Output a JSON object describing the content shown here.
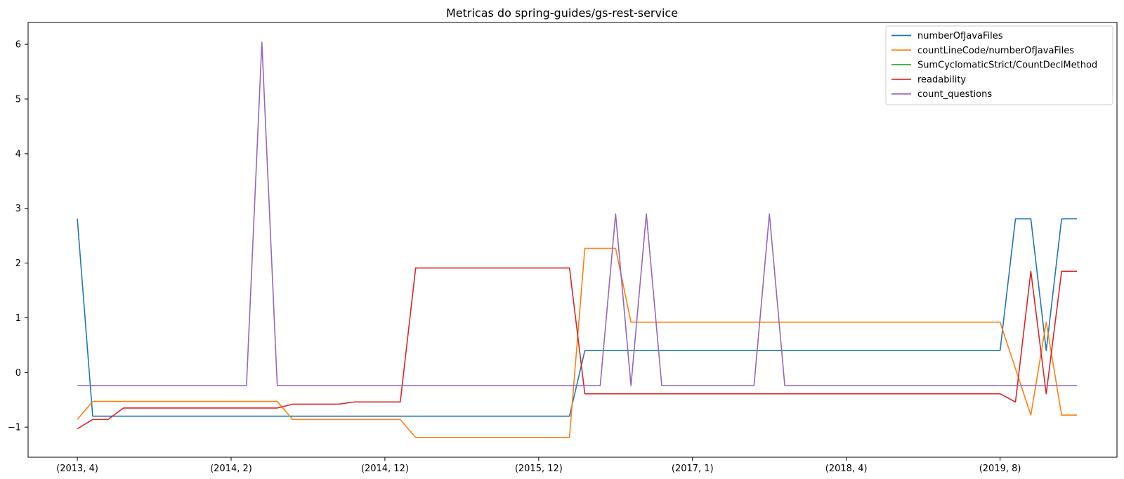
{
  "chart_data": {
    "type": "line",
    "title": "Metricas do spring-guides/gs-rest-service",
    "xlabel": "",
    "ylabel": "",
    "x_ticks": [
      {
        "index": 0,
        "label": "(2013, 4)"
      },
      {
        "index": 10,
        "label": "(2014, 2)"
      },
      {
        "index": 20,
        "label": "(2014, 12)"
      },
      {
        "index": 30,
        "label": "(2015, 12)"
      },
      {
        "index": 40,
        "label": "(2017, 1)"
      },
      {
        "index": 50,
        "label": "(2018, 4)"
      },
      {
        "index": 60,
        "label": "(2019, 8)"
      }
    ],
    "xlim": [
      -3.2,
      67.6
    ],
    "ylim": [
      -1.55,
      6.4
    ],
    "y_ticks": [
      -1,
      0,
      1,
      2,
      3,
      4,
      5,
      6
    ],
    "y_tick_labels": [
      "−1",
      "0",
      "1",
      "2",
      "3",
      "4",
      "5",
      "6"
    ],
    "grid": false,
    "legend_position": "upper-right",
    "series": [
      {
        "name": "numberOfJavaFiles",
        "color": "#1f77b4",
        "points": [
          [
            0,
            2.81
          ],
          [
            1,
            -0.8
          ],
          [
            32,
            -0.8
          ],
          [
            33,
            0.4
          ],
          [
            60,
            0.4
          ],
          [
            61,
            2.81
          ],
          [
            62,
            2.81
          ],
          [
            63,
            0.4
          ],
          [
            64,
            2.81
          ],
          [
            65,
            2.81
          ]
        ]
      },
      {
        "name": "countLineCode/numberOfJavaFiles",
        "color": "#ff7f0e",
        "points": [
          [
            0,
            -0.86
          ],
          [
            1,
            -0.53
          ],
          [
            13,
            -0.53
          ],
          [
            14,
            -0.86
          ],
          [
            21,
            -0.86
          ],
          [
            22,
            -1.19
          ],
          [
            32,
            -1.19
          ],
          [
            33,
            2.27
          ],
          [
            35,
            2.27
          ],
          [
            36,
            0.92
          ],
          [
            60,
            0.92
          ],
          [
            62,
            -0.78
          ],
          [
            63,
            0.92
          ],
          [
            64,
            -0.78
          ],
          [
            65,
            -0.78
          ]
        ]
      },
      {
        "name": "SumCyclomaticStrict/CountDeclMethod",
        "color": "#2ca02c",
        "points": []
      },
      {
        "name": "readability",
        "color": "#d62728",
        "points": [
          [
            0,
            -1.03
          ],
          [
            1,
            -0.86
          ],
          [
            2,
            -0.86
          ],
          [
            3,
            -0.65
          ],
          [
            13,
            -0.65
          ],
          [
            14,
            -0.58
          ],
          [
            17,
            -0.58
          ],
          [
            18,
            -0.54
          ],
          [
            21,
            -0.54
          ],
          [
            22,
            1.91
          ],
          [
            32,
            1.91
          ],
          [
            33,
            -0.39
          ],
          [
            60,
            -0.39
          ],
          [
            61,
            -0.54
          ],
          [
            62,
            1.85
          ],
          [
            63,
            -0.39
          ],
          [
            64,
            1.85
          ],
          [
            65,
            1.85
          ]
        ]
      },
      {
        "name": "count_questions",
        "color": "#9467bd",
        "points": [
          [
            0,
            -0.24
          ],
          [
            11,
            -0.24
          ],
          [
            12,
            6.04
          ],
          [
            13,
            -0.24
          ],
          [
            34,
            -0.24
          ],
          [
            35,
            2.9
          ],
          [
            36,
            -0.24
          ],
          [
            37,
            2.9
          ],
          [
            38,
            -0.24
          ],
          [
            44,
            -0.24
          ],
          [
            45,
            2.9
          ],
          [
            46,
            -0.24
          ],
          [
            65,
            -0.24
          ]
        ]
      }
    ]
  }
}
